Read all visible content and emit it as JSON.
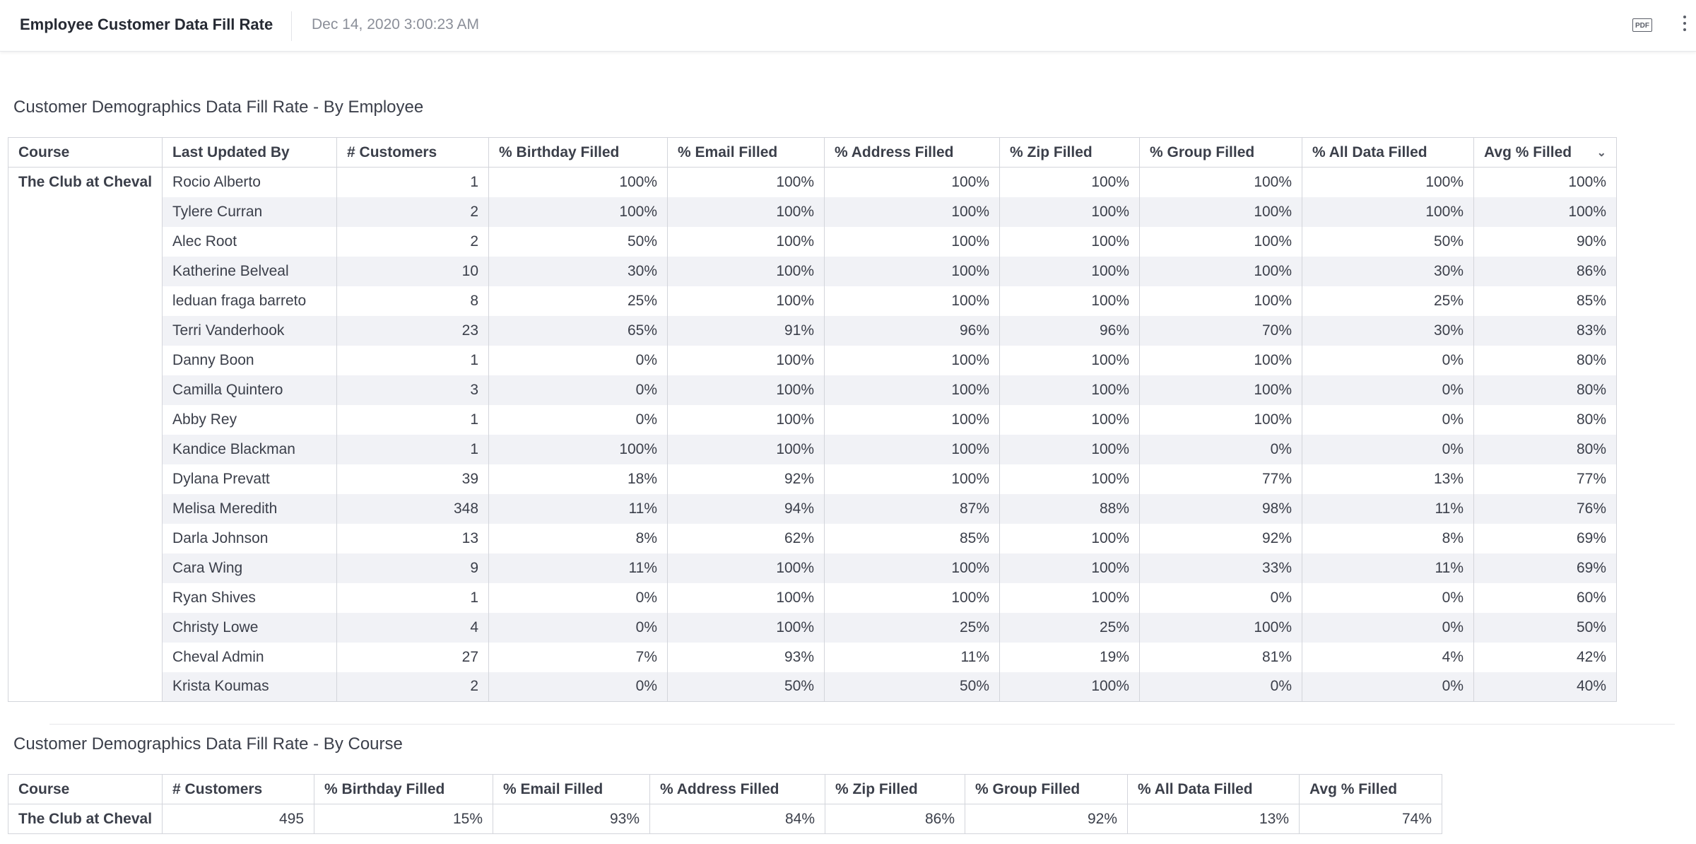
{
  "header": {
    "title": "Employee Customer Data Fill Rate",
    "timestamp": "Dec 14, 2020 3:00:23 AM",
    "pdf_label": "PDF",
    "pdf_icon": "pdf-icon",
    "more_icon": "more-vertical-icon"
  },
  "by_employee": {
    "title": "Customer Demographics Data Fill Rate - By Employee",
    "columns": [
      "Course",
      "Last Updated By",
      "# Customers",
      "% Birthday Filled",
      "% Email Filled",
      "% Address Filled",
      "% Zip Filled",
      "% Group Filled",
      "% All Data Filled",
      "Avg % Filled"
    ],
    "sort_icon": "chevron-down-icon",
    "course": "The Club at Cheval",
    "rows": [
      [
        "Rocio Alberto",
        "1",
        "100%",
        "100%",
        "100%",
        "100%",
        "100%",
        "100%",
        "100%"
      ],
      [
        "Tylere Curran",
        "2",
        "100%",
        "100%",
        "100%",
        "100%",
        "100%",
        "100%",
        "100%"
      ],
      [
        "Alec Root",
        "2",
        "50%",
        "100%",
        "100%",
        "100%",
        "100%",
        "50%",
        "90%"
      ],
      [
        "Katherine Belveal",
        "10",
        "30%",
        "100%",
        "100%",
        "100%",
        "100%",
        "30%",
        "86%"
      ],
      [
        "leduan fraga barreto",
        "8",
        "25%",
        "100%",
        "100%",
        "100%",
        "100%",
        "25%",
        "85%"
      ],
      [
        "Terri Vanderhook",
        "23",
        "65%",
        "91%",
        "96%",
        "96%",
        "70%",
        "30%",
        "83%"
      ],
      [
        "Danny Boon",
        "1",
        "0%",
        "100%",
        "100%",
        "100%",
        "100%",
        "0%",
        "80%"
      ],
      [
        "Camilla Quintero",
        "3",
        "0%",
        "100%",
        "100%",
        "100%",
        "100%",
        "0%",
        "80%"
      ],
      [
        "Abby Rey",
        "1",
        "0%",
        "100%",
        "100%",
        "100%",
        "100%",
        "0%",
        "80%"
      ],
      [
        "Kandice Blackman",
        "1",
        "100%",
        "100%",
        "100%",
        "100%",
        "0%",
        "0%",
        "80%"
      ],
      [
        "Dylana Prevatt",
        "39",
        "18%",
        "92%",
        "100%",
        "100%",
        "77%",
        "13%",
        "77%"
      ],
      [
        "Melisa Meredith",
        "348",
        "11%",
        "94%",
        "87%",
        "88%",
        "98%",
        "11%",
        "76%"
      ],
      [
        "Darla Johnson",
        "13",
        "8%",
        "62%",
        "85%",
        "100%",
        "92%",
        "8%",
        "69%"
      ],
      [
        "Cara Wing",
        "9",
        "11%",
        "100%",
        "100%",
        "100%",
        "33%",
        "11%",
        "69%"
      ],
      [
        "Ryan Shives",
        "1",
        "0%",
        "100%",
        "100%",
        "100%",
        "0%",
        "0%",
        "60%"
      ],
      [
        "Christy Lowe",
        "4",
        "0%",
        "100%",
        "25%",
        "25%",
        "100%",
        "0%",
        "50%"
      ],
      [
        "Cheval Admin",
        "27",
        "7%",
        "93%",
        "11%",
        "19%",
        "81%",
        "4%",
        "42%"
      ],
      [
        "Krista Koumas",
        "2",
        "0%",
        "50%",
        "50%",
        "100%",
        "0%",
        "0%",
        "40%"
      ]
    ]
  },
  "by_course": {
    "title": "Customer Demographics Data Fill Rate - By Course",
    "columns": [
      "Course",
      "# Customers",
      "% Birthday Filled",
      "% Email Filled",
      "% Address Filled",
      "% Zip Filled",
      "% Group Filled",
      "% All Data Filled",
      "Avg % Filled"
    ],
    "rows": [
      [
        "The Club at Cheval",
        "495",
        "15%",
        "93%",
        "84%",
        "86%",
        "92%",
        "13%",
        "74%"
      ]
    ]
  }
}
